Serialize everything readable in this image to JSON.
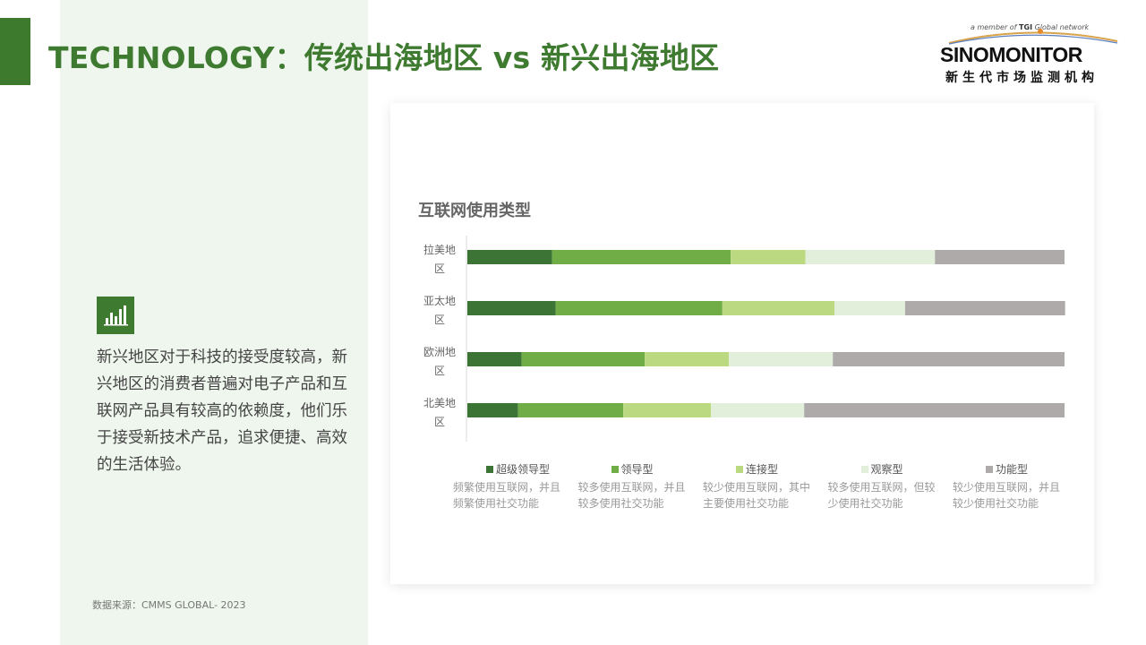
{
  "header": {
    "title": "TECHNOLOGY：传统出海地区 vs 新兴出海地区"
  },
  "logo": {
    "tagline_prefix": "a member of",
    "tagline_brand": "TGI",
    "tagline_suffix": "Global network",
    "name": "SINOMONITOR",
    "subtitle": "新生代市场监测机构"
  },
  "insight": {
    "icon": "bar-chart-icon",
    "text": "新兴地区对于科技的接受度较高，新兴地区的消费者普遍对电子产品和互联网产品具有较高的依赖度，他们乐于接受新技术产品，追求便捷、高效的生活体验。"
  },
  "source": "数据来源：CMMS GLOBAL- 2023",
  "colors": {
    "accent": "#3e7a2f",
    "panel": "#eff6ee"
  },
  "chart_data": {
    "type": "bar",
    "orientation": "horizontal",
    "stacked": "100%",
    "title": "互联网使用类型",
    "categories": [
      [
        "拉美地",
        "区"
      ],
      [
        "亚太地",
        "区"
      ],
      [
        "欧洲地",
        "区"
      ],
      [
        "北美地",
        "区"
      ]
    ],
    "xlim": [
      0,
      100
    ],
    "grid": false,
    "legend_position": "bottom",
    "series": [
      {
        "name": "超级领导型",
        "color": "#3b7434",
        "values": [
          14.2,
          14.8,
          9.1,
          8.5
        ]
      },
      {
        "name": "领导型",
        "color": "#70ad47",
        "values": [
          29.9,
          27.9,
          20.6,
          17.6
        ]
      },
      {
        "name": "连接型",
        "color": "#bad981",
        "values": [
          12.5,
          18.8,
          14.1,
          14.7
        ]
      },
      {
        "name": "观察型",
        "color": "#e2efda",
        "values": [
          21.7,
          11.8,
          17.4,
          15.6
        ]
      },
      {
        "name": "功能型",
        "color": "#aeaaaa",
        "values": [
          21.7,
          26.8,
          38.8,
          43.6
        ]
      }
    ],
    "legend_descriptions": [
      [
        "频繁使用互联网，并且",
        "频繁使用社交功能"
      ],
      [
        "较多使用互联网，并且",
        "较多使用社交功能"
      ],
      [
        "较少使用互联网，其中",
        "主要使用社交功能"
      ],
      [
        "较多使用互联网，但较",
        "少使用社交功能"
      ],
      [
        "较少使用互联网，并且",
        "较少使用社交功能"
      ]
    ]
  }
}
